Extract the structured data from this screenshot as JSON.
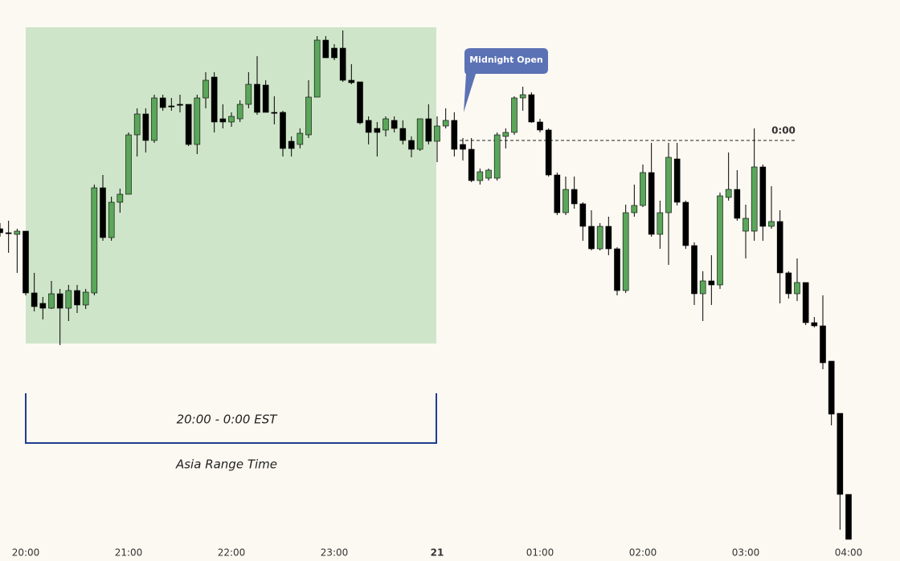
{
  "chart_data": {
    "type": "candlestick",
    "categories": [
      null,
      null,
      null,
      "20:00",
      null,
      null,
      null,
      null,
      null,
      null,
      null,
      null,
      null,
      null,
      null,
      "21:00",
      null,
      null,
      null,
      null,
      null,
      null,
      null,
      null,
      null,
      null,
      null,
      "22:00",
      null,
      null,
      null,
      null,
      null,
      null,
      null,
      null,
      null,
      null,
      null,
      "23:00",
      null,
      null,
      null,
      null,
      null,
      null,
      null,
      null,
      null,
      null,
      null,
      "21",
      null,
      null,
      null,
      null,
      null,
      null,
      null,
      null,
      null,
      null,
      null,
      "01:00",
      null,
      null,
      null,
      null,
      null,
      null,
      null,
      null,
      null,
      null,
      null,
      "02:00",
      null,
      null,
      null,
      null,
      null,
      null,
      null,
      null,
      null,
      null,
      null,
      "03:00",
      null,
      null,
      null,
      null,
      null,
      null,
      null,
      null,
      null,
      null,
      null,
      "04:00"
    ],
    "open": [
      414,
      409,
      407,
      411,
      334,
      321,
      315,
      333,
      315,
      337,
      319,
      334,
      465,
      403,
      447,
      457,
      531,
      557,
      524,
      577,
      567,
      569,
      569,
      519,
      577,
      603,
      551,
      547,
      551,
      569,
      594,
      593,
      559,
      559,
      523,
      519,
      531,
      578,
      649,
      639,
      639,
      599,
      597,
      549,
      539,
      537,
      549,
      539,
      524,
      513,
      551,
      523,
      542,
      549,
      519,
      513,
      474,
      477,
      477,
      529,
      534,
      577,
      581,
      547,
      537,
      481,
      434,
      463,
      445,
      417,
      389,
      417,
      389,
      337,
      434,
      443,
      484,
      407,
      434,
      501,
      447,
      393,
      333,
      349,
      344,
      453,
      463,
      411,
      411,
      491,
      417,
      423,
      359,
      333,
      347,
      297,
      293,
      249,
      184,
      83
    ],
    "high": [
      421,
      424,
      414,
      411,
      359,
      329,
      349,
      339,
      344,
      344,
      339,
      469,
      481,
      454,
      464,
      534,
      564,
      564,
      581,
      581,
      577,
      581,
      569,
      581,
      609,
      609,
      569,
      559,
      574,
      609,
      629,
      599,
      579,
      561,
      529,
      539,
      599,
      654,
      654,
      644,
      661,
      619,
      597,
      554,
      547,
      554,
      554,
      549,
      529,
      551,
      569,
      554,
      564,
      559,
      527,
      527,
      489,
      489,
      534,
      539,
      579,
      591,
      584,
      551,
      539,
      484,
      479,
      479,
      447,
      437,
      421,
      429,
      391,
      444,
      469,
      494,
      521,
      449,
      521,
      521,
      449,
      397,
      361,
      381,
      459,
      509,
      487,
      444,
      539,
      494,
      467,
      437,
      361,
      377,
      347,
      304,
      331,
      249,
      184,
      83
    ],
    "low": [
      404,
      384,
      359,
      331,
      311,
      301,
      314,
      269,
      299,
      309,
      314,
      331,
      399,
      399,
      434,
      457,
      504,
      509,
      521,
      561,
      561,
      559,
      517,
      507,
      564,
      534,
      539,
      541,
      547,
      564,
      556,
      559,
      544,
      504,
      504,
      514,
      527,
      578,
      627,
      624,
      597,
      594,
      544,
      519,
      504,
      529,
      534,
      519,
      503,
      511,
      519,
      497,
      539,
      504,
      499,
      472,
      469,
      474,
      474,
      514,
      531,
      561,
      546,
      534,
      479,
      431,
      431,
      439,
      399,
      387,
      387,
      381,
      331,
      334,
      429,
      441,
      404,
      389,
      369,
      443,
      389,
      319,
      299,
      319,
      339,
      449,
      424,
      377,
      399,
      399,
      414,
      321,
      327,
      324,
      294,
      291,
      239,
      169,
      39,
      27
    ],
    "close": [
      409,
      409,
      411,
      334,
      317,
      315,
      333,
      315,
      337,
      319,
      335,
      465,
      403,
      447,
      457,
      531,
      557,
      524,
      577,
      565,
      567,
      569,
      519,
      577,
      599,
      547,
      547,
      554,
      569,
      594,
      559,
      559,
      559,
      514,
      514,
      533,
      578,
      649,
      627,
      627,
      599,
      596,
      546,
      534,
      534,
      551,
      539,
      524,
      513,
      551,
      523,
      542,
      549,
      513,
      513,
      474,
      485,
      487,
      531,
      534,
      577,
      581,
      547,
      537,
      481,
      434,
      463,
      445,
      417,
      389,
      417,
      389,
      337,
      434,
      443,
      484,
      407,
      434,
      503,
      447,
      393,
      333,
      349,
      344,
      455,
      463,
      427,
      427,
      491,
      417,
      423,
      359,
      333,
      347,
      297,
      293,
      247,
      183,
      83,
      27
    ],
    "ylim": [
      0,
      699
    ],
    "up_color": "#5aa65a",
    "down_color": "#000000",
    "levels": [
      {
        "label": "0:00",
        "value": 524
      }
    ],
    "annotations": {
      "callout": "Midnight Open",
      "range_label": "20:00 - 0:00 EST",
      "range_title": "Asia Range Time"
    }
  }
}
